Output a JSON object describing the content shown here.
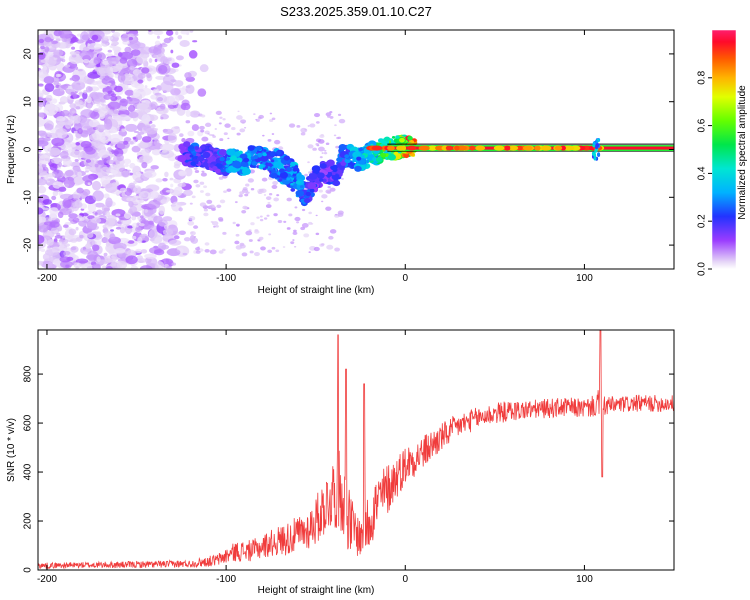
{
  "title": "S233.2025.359.01.10.C27",
  "chart_data": [
    {
      "type": "heatmap",
      "name": "spectrogram",
      "xlabel": "Height of straight line (km)",
      "ylabel": "Frequency (Hz)",
      "xlim": [
        -205,
        150
      ],
      "ylim": [
        -25,
        25
      ],
      "xticks": [
        -200,
        -100,
        0,
        100
      ],
      "yticks": [
        -20,
        -10,
        0,
        10,
        20
      ],
      "colorbar": {
        "label": "Normalized spectral amplitude",
        "range": [
          0,
          1
        ],
        "ticks": [
          "0.0",
          "0.2",
          "0.4",
          "0.6",
          "0.8"
        ]
      },
      "tone_band": {
        "frequency_hz": 0.3,
        "x_start_km": -10,
        "x_end_km": 150,
        "amplitude": 0.95
      },
      "track_points": [
        {
          "x": -125,
          "y": -1.0,
          "v": 0.12
        },
        {
          "x": -120,
          "y": -1.0,
          "v": 0.25
        },
        {
          "x": -110,
          "y": -1.5,
          "v": 0.18
        },
        {
          "x": -105,
          "y": -2.5,
          "v": 0.2
        },
        {
          "x": -100,
          "y": -3.0,
          "v": 0.3
        },
        {
          "x": -95,
          "y": -2.0,
          "v": 0.35
        },
        {
          "x": -90,
          "y": -3.0,
          "v": 0.32
        },
        {
          "x": -85,
          "y": -1.5,
          "v": 0.3
        },
        {
          "x": -80,
          "y": -2.0,
          "v": 0.3
        },
        {
          "x": -75,
          "y": -2.5,
          "v": 0.28
        },
        {
          "x": -70,
          "y": -3.5,
          "v": 0.3
        },
        {
          "x": -65,
          "y": -5.0,
          "v": 0.3
        },
        {
          "x": -60,
          "y": -7.0,
          "v": 0.35
        },
        {
          "x": -56,
          "y": -9.5,
          "v": 0.25
        },
        {
          "x": -50,
          "y": -6.0,
          "v": 0.2
        },
        {
          "x": -45,
          "y": -4.5,
          "v": 0.18
        },
        {
          "x": -38,
          "y": -5.0,
          "v": 0.22
        },
        {
          "x": -35,
          "y": -1.5,
          "v": 0.25
        },
        {
          "x": -30,
          "y": -1.5,
          "v": 0.3
        },
        {
          "x": -25,
          "y": -2.0,
          "v": 0.35
        },
        {
          "x": -20,
          "y": -1.0,
          "v": 0.4
        },
        {
          "x": -15,
          "y": -0.5,
          "v": 0.45
        },
        {
          "x": -10,
          "y": 0.2,
          "v": 0.55
        },
        {
          "x": -5,
          "y": 0.5,
          "v": 0.65
        },
        {
          "x": 0,
          "y": 0.8,
          "v": 0.75
        },
        {
          "x": 5,
          "y": 0.5,
          "v": 0.85
        }
      ]
    },
    {
      "type": "line",
      "name": "snr",
      "xlabel": "Height of straight line (km)",
      "ylabel": "SNR (10 * v/v)",
      "xlim": [
        -205,
        150
      ],
      "ylim": [
        0,
        980
      ],
      "xticks": [
        -200,
        -100,
        0,
        100
      ],
      "yticks": [
        0,
        200,
        400,
        600,
        800
      ],
      "color": "#f03c3c",
      "series": [
        {
          "name": "SNR",
          "x": [
            -205,
            -180,
            -150,
            -120,
            -105,
            -95,
            -85,
            -75,
            -65,
            -55,
            -50,
            -45,
            -40,
            -37,
            -35,
            -33,
            -30,
            -25,
            -22,
            -19,
            -15,
            -10,
            -5,
            0,
            10,
            20,
            30,
            40,
            50,
            60,
            70,
            80,
            90,
            100,
            106,
            108,
            109,
            110,
            112,
            120,
            130,
            140,
            150
          ],
          "mean": [
            18,
            20,
            22,
            25,
            40,
            75,
            80,
            110,
            130,
            160,
            200,
            260,
            320,
            330,
            320,
            240,
            180,
            130,
            170,
            230,
            280,
            330,
            380,
            430,
            480,
            540,
            590,
            620,
            640,
            650,
            655,
            660,
            665,
            660,
            670,
            680,
            690,
            670,
            670,
            675,
            680,
            680,
            680
          ],
          "noise": [
            12,
            12,
            14,
            15,
            25,
            40,
            45,
            55,
            70,
            80,
            100,
            120,
            150,
            170,
            170,
            150,
            120,
            80,
            120,
            130,
            120,
            110,
            90,
            80,
            70,
            60,
            50,
            45,
            45,
            42,
            40,
            40,
            40,
            40,
            45,
            60,
            60,
            45,
            40,
            35,
            35,
            35,
            35
          ],
          "spikes": [
            {
              "x": -37.5,
              "y": 960
            },
            {
              "x": -33,
              "y": 820
            },
            {
              "x": -23,
              "y": 760
            },
            {
              "x": 109,
              "y": 980
            },
            {
              "x": 110,
              "y": 380
            }
          ]
        }
      ]
    }
  ]
}
